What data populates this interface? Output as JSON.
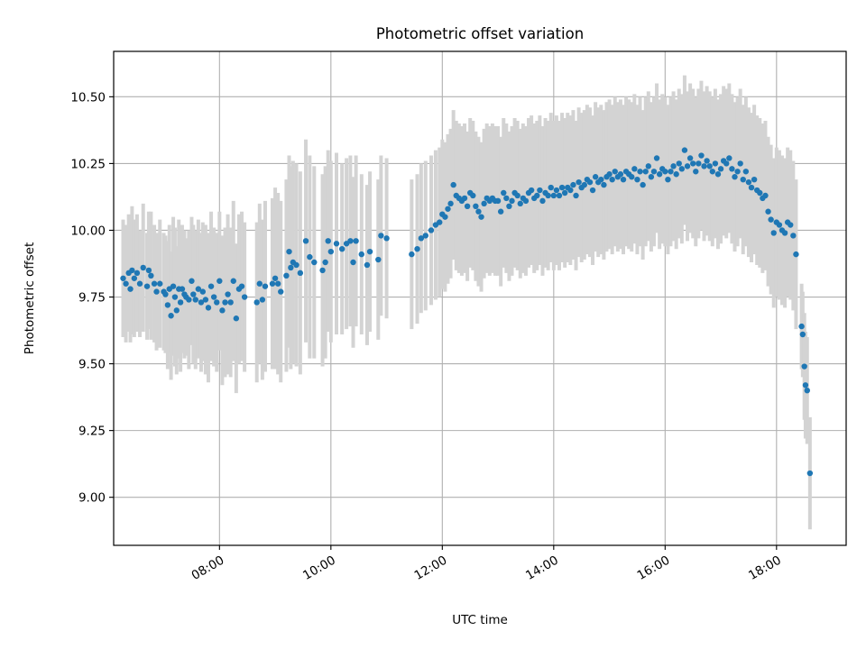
{
  "chart_data": {
    "type": "scatter",
    "title": "Photometric offset variation",
    "xlabel": "UTC time",
    "ylabel": "Photometric offset",
    "xlim_hours": [
      6.1,
      19.25
    ],
    "ylim": [
      8.82,
      10.67
    ],
    "x_tick_labels": [
      "08:00",
      "10:00",
      "12:00",
      "14:00",
      "16:00",
      "18:00"
    ],
    "x_tick_hours": [
      8,
      10,
      12,
      14,
      16,
      18
    ],
    "y_ticks": [
      9.0,
      9.25,
      9.5,
      9.75,
      10.0,
      10.25,
      10.5
    ],
    "y_tick_labels": [
      "9.00",
      "9.25",
      "9.50",
      "9.75",
      "10.00",
      "10.25",
      "10.50"
    ],
    "grid": true,
    "colors": {
      "points": "#1f77b4",
      "error_bars": "#d3d3d3",
      "grid": "#b0b0b0"
    },
    "series": [
      {
        "points": [
          [
            6.27,
            9.82,
            0.22
          ],
          [
            6.32,
            9.8,
            0.22
          ],
          [
            6.37,
            9.84,
            0.22
          ],
          [
            6.4,
            9.78,
            0.2
          ],
          [
            6.43,
            9.85,
            0.24
          ],
          [
            6.47,
            9.82,
            0.22
          ],
          [
            6.52,
            9.84,
            0.22
          ],
          [
            6.57,
            9.8,
            0.2
          ],
          [
            6.63,
            9.86,
            0.24
          ],
          [
            6.7,
            9.79,
            0.2
          ],
          [
            6.73,
            9.85,
            0.22
          ],
          [
            6.77,
            9.83,
            0.24
          ],
          [
            6.83,
            9.8,
            0.22
          ],
          [
            6.87,
            9.77,
            0.22
          ],
          [
            6.93,
            9.8,
            0.24
          ],
          [
            7.0,
            9.77,
            0.22
          ],
          [
            7.03,
            9.76,
            0.22
          ],
          [
            7.07,
            9.72,
            0.24
          ],
          [
            7.1,
            9.78,
            0.24
          ],
          [
            7.13,
            9.68,
            0.24
          ],
          [
            7.17,
            9.79,
            0.26
          ],
          [
            7.2,
            9.75,
            0.26
          ],
          [
            7.23,
            9.7,
            0.24
          ],
          [
            7.27,
            9.78,
            0.26
          ],
          [
            7.3,
            9.73,
            0.26
          ],
          [
            7.33,
            9.78,
            0.24
          ],
          [
            7.37,
            9.76,
            0.24
          ],
          [
            7.4,
            9.75,
            0.22
          ],
          [
            7.45,
            9.74,
            0.26
          ],
          [
            7.5,
            9.81,
            0.24
          ],
          [
            7.53,
            9.76,
            0.26
          ],
          [
            7.57,
            9.74,
            0.26
          ],
          [
            7.62,
            9.78,
            0.26
          ],
          [
            7.67,
            9.73,
            0.26
          ],
          [
            7.7,
            9.77,
            0.26
          ],
          [
            7.75,
            9.74,
            0.28
          ],
          [
            7.8,
            9.71,
            0.28
          ],
          [
            7.85,
            9.79,
            0.28
          ],
          [
            7.9,
            9.75,
            0.26
          ],
          [
            7.95,
            9.73,
            0.26
          ],
          [
            8.0,
            9.81,
            0.26
          ],
          [
            8.05,
            9.7,
            0.28
          ],
          [
            8.1,
            9.73,
            0.28
          ],
          [
            8.15,
            9.76,
            0.3
          ],
          [
            8.2,
            9.73,
            0.28
          ],
          [
            8.25,
            9.81,
            0.3
          ],
          [
            8.3,
            9.67,
            0.28
          ],
          [
            8.35,
            9.78,
            0.28
          ],
          [
            8.4,
            9.79,
            0.28
          ],
          [
            8.45,
            9.75,
            0.28
          ],
          [
            8.67,
            9.73,
            0.3
          ],
          [
            8.72,
            9.8,
            0.3
          ],
          [
            8.77,
            9.74,
            0.3
          ],
          [
            8.82,
            9.79,
            0.32
          ],
          [
            8.95,
            9.8,
            0.32
          ],
          [
            9.0,
            9.82,
            0.34
          ],
          [
            9.05,
            9.8,
            0.34
          ],
          [
            9.1,
            9.77,
            0.34
          ],
          [
            9.2,
            9.83,
            0.36
          ],
          [
            9.25,
            9.92,
            0.36
          ],
          [
            9.28,
            9.86,
            0.38
          ],
          [
            9.32,
            9.88,
            0.38
          ],
          [
            9.38,
            9.87,
            0.38
          ],
          [
            9.45,
            9.84,
            0.38
          ],
          [
            9.55,
            9.96,
            0.38
          ],
          [
            9.62,
            9.9,
            0.38
          ],
          [
            9.7,
            9.88,
            0.36
          ],
          [
            9.85,
            9.85,
            0.36
          ],
          [
            9.9,
            9.88,
            0.36
          ],
          [
            9.95,
            9.96,
            0.34
          ],
          [
            10.0,
            9.92,
            0.34
          ],
          [
            10.1,
            9.95,
            0.34
          ],
          [
            10.2,
            9.93,
            0.32
          ],
          [
            10.28,
            9.95,
            0.32
          ],
          [
            10.35,
            9.96,
            0.32
          ],
          [
            10.4,
            9.88,
            0.32
          ],
          [
            10.45,
            9.96,
            0.32
          ],
          [
            10.55,
            9.91,
            0.3
          ],
          [
            10.65,
            9.87,
            0.3
          ],
          [
            10.7,
            9.92,
            0.3
          ],
          [
            10.85,
            9.89,
            0.3
          ],
          [
            10.9,
            9.98,
            0.3
          ],
          [
            11.0,
            9.97,
            0.3
          ],
          [
            11.45,
            9.91,
            0.28
          ],
          [
            11.55,
            9.93,
            0.28
          ],
          [
            11.62,
            9.97,
            0.28
          ],
          [
            11.7,
            9.98,
            0.28
          ],
          [
            11.8,
            10.0,
            0.28
          ],
          [
            11.88,
            10.02,
            0.28
          ],
          [
            11.95,
            10.03,
            0.28
          ],
          [
            12.0,
            10.06,
            0.28
          ],
          [
            12.05,
            10.05,
            0.28
          ],
          [
            12.1,
            10.08,
            0.28
          ],
          [
            12.15,
            10.1,
            0.28
          ],
          [
            12.2,
            10.17,
            0.28
          ],
          [
            12.25,
            10.13,
            0.28
          ],
          [
            12.3,
            10.12,
            0.28
          ],
          [
            12.35,
            10.11,
            0.28
          ],
          [
            12.4,
            10.12,
            0.28
          ],
          [
            12.45,
            10.09,
            0.28
          ],
          [
            12.5,
            10.14,
            0.28
          ],
          [
            12.55,
            10.13,
            0.28
          ],
          [
            12.6,
            10.09,
            0.28
          ],
          [
            12.65,
            10.07,
            0.28
          ],
          [
            12.7,
            10.05,
            0.28
          ],
          [
            12.75,
            10.1,
            0.28
          ],
          [
            12.8,
            10.12,
            0.28
          ],
          [
            12.85,
            10.11,
            0.28
          ],
          [
            12.9,
            10.12,
            0.28
          ],
          [
            12.95,
            10.11,
            0.28
          ],
          [
            13.0,
            10.11,
            0.28
          ],
          [
            13.05,
            10.07,
            0.28
          ],
          [
            13.1,
            10.14,
            0.28
          ],
          [
            13.15,
            10.12,
            0.28
          ],
          [
            13.2,
            10.09,
            0.28
          ],
          [
            13.25,
            10.11,
            0.28
          ],
          [
            13.3,
            10.14,
            0.28
          ],
          [
            13.35,
            10.13,
            0.28
          ],
          [
            13.4,
            10.1,
            0.28
          ],
          [
            13.45,
            10.12,
            0.28
          ],
          [
            13.5,
            10.11,
            0.28
          ],
          [
            13.55,
            10.14,
            0.28
          ],
          [
            13.6,
            10.15,
            0.28
          ],
          [
            13.65,
            10.12,
            0.28
          ],
          [
            13.7,
            10.13,
            0.28
          ],
          [
            13.75,
            10.15,
            0.28
          ],
          [
            13.8,
            10.11,
            0.28
          ],
          [
            13.85,
            10.14,
            0.28
          ],
          [
            13.9,
            10.13,
            0.28
          ],
          [
            13.95,
            10.16,
            0.28
          ],
          [
            14.0,
            10.13,
            0.28
          ],
          [
            14.05,
            10.15,
            0.28
          ],
          [
            14.1,
            10.13,
            0.28
          ],
          [
            14.15,
            10.16,
            0.28
          ],
          [
            14.2,
            10.14,
            0.28
          ],
          [
            14.25,
            10.16,
            0.28
          ],
          [
            14.3,
            10.15,
            0.28
          ],
          [
            14.35,
            10.17,
            0.28
          ],
          [
            14.4,
            10.13,
            0.28
          ],
          [
            14.45,
            10.18,
            0.28
          ],
          [
            14.5,
            10.16,
            0.28
          ],
          [
            14.55,
            10.17,
            0.28
          ],
          [
            14.6,
            10.19,
            0.28
          ],
          [
            14.65,
            10.18,
            0.28
          ],
          [
            14.7,
            10.15,
            0.28
          ],
          [
            14.75,
            10.2,
            0.28
          ],
          [
            14.8,
            10.18,
            0.28
          ],
          [
            14.85,
            10.19,
            0.28
          ],
          [
            14.9,
            10.17,
            0.28
          ],
          [
            14.95,
            10.2,
            0.28
          ],
          [
            15.0,
            10.21,
            0.28
          ],
          [
            15.05,
            10.19,
            0.28
          ],
          [
            15.1,
            10.22,
            0.28
          ],
          [
            15.15,
            10.2,
            0.28
          ],
          [
            15.2,
            10.21,
            0.28
          ],
          [
            15.25,
            10.19,
            0.28
          ],
          [
            15.3,
            10.22,
            0.28
          ],
          [
            15.35,
            10.21,
            0.28
          ],
          [
            15.4,
            10.2,
            0.28
          ],
          [
            15.45,
            10.23,
            0.28
          ],
          [
            15.5,
            10.19,
            0.28
          ],
          [
            15.55,
            10.22,
            0.28
          ],
          [
            15.6,
            10.17,
            0.28
          ],
          [
            15.65,
            10.22,
            0.28
          ],
          [
            15.7,
            10.24,
            0.28
          ],
          [
            15.75,
            10.2,
            0.28
          ],
          [
            15.8,
            10.22,
            0.28
          ],
          [
            15.85,
            10.27,
            0.28
          ],
          [
            15.9,
            10.21,
            0.28
          ],
          [
            15.95,
            10.23,
            0.28
          ],
          [
            16.0,
            10.22,
            0.28
          ],
          [
            16.05,
            10.19,
            0.28
          ],
          [
            16.1,
            10.22,
            0.28
          ],
          [
            16.15,
            10.24,
            0.28
          ],
          [
            16.2,
            10.21,
            0.28
          ],
          [
            16.25,
            10.25,
            0.28
          ],
          [
            16.3,
            10.23,
            0.28
          ],
          [
            16.35,
            10.3,
            0.28
          ],
          [
            16.4,
            10.24,
            0.28
          ],
          [
            16.45,
            10.27,
            0.28
          ],
          [
            16.5,
            10.25,
            0.28
          ],
          [
            16.55,
            10.22,
            0.28
          ],
          [
            16.6,
            10.25,
            0.28
          ],
          [
            16.65,
            10.28,
            0.28
          ],
          [
            16.7,
            10.24,
            0.28
          ],
          [
            16.75,
            10.26,
            0.28
          ],
          [
            16.8,
            10.24,
            0.28
          ],
          [
            16.85,
            10.22,
            0.28
          ],
          [
            16.9,
            10.25,
            0.28
          ],
          [
            16.95,
            10.21,
            0.28
          ],
          [
            17.0,
            10.23,
            0.28
          ],
          [
            17.05,
            10.26,
            0.28
          ],
          [
            17.1,
            10.25,
            0.28
          ],
          [
            17.15,
            10.27,
            0.28
          ],
          [
            17.2,
            10.23,
            0.28
          ],
          [
            17.25,
            10.2,
            0.28
          ],
          [
            17.3,
            10.22,
            0.28
          ],
          [
            17.35,
            10.25,
            0.28
          ],
          [
            17.4,
            10.19,
            0.28
          ],
          [
            17.45,
            10.22,
            0.28
          ],
          [
            17.5,
            10.18,
            0.28
          ],
          [
            17.55,
            10.16,
            0.28
          ],
          [
            17.6,
            10.19,
            0.28
          ],
          [
            17.65,
            10.15,
            0.28
          ],
          [
            17.7,
            10.14,
            0.28
          ],
          [
            17.75,
            10.12,
            0.28
          ],
          [
            17.8,
            10.13,
            0.28
          ],
          [
            17.85,
            10.07,
            0.28
          ],
          [
            17.9,
            10.04,
            0.28
          ],
          [
            17.95,
            9.99,
            0.28
          ],
          [
            18.0,
            10.03,
            0.28
          ],
          [
            18.05,
            10.02,
            0.28
          ],
          [
            18.1,
            10.0,
            0.28
          ],
          [
            18.15,
            9.99,
            0.28
          ],
          [
            18.2,
            10.03,
            0.28
          ],
          [
            18.25,
            10.02,
            0.28
          ],
          [
            18.3,
            9.98,
            0.28
          ],
          [
            18.35,
            9.91,
            0.28
          ],
          [
            18.45,
            9.64,
            0.16
          ],
          [
            18.47,
            9.61,
            0.16
          ],
          [
            18.5,
            9.49,
            0.2
          ],
          [
            18.52,
            9.42,
            0.2
          ],
          [
            18.55,
            9.4,
            0.2
          ],
          [
            18.6,
            9.09,
            0.21
          ]
        ]
      }
    ]
  }
}
